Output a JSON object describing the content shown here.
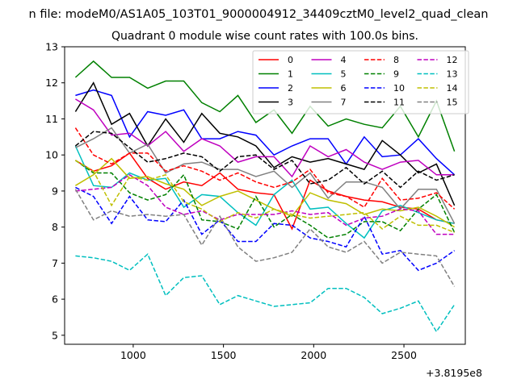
{
  "chart_data": {
    "type": "line",
    "suptitle": "n file: modeM0/AS1A05_103T01_9000004912_34409cztM0_level2_quad_clean",
    "title": "Quadrant 0 module wise count rates with 100.0s bins.",
    "xlabel": "",
    "ylabel": "",
    "x_offset_label": "+3.8195e8",
    "xlim": [
      620,
      2840
    ],
    "ylim": [
      4.75,
      13.0
    ],
    "xticks": [
      1000,
      1500,
      2000,
      2500
    ],
    "yticks": [
      5,
      6,
      7,
      8,
      9,
      10,
      11,
      12,
      13
    ],
    "legend_position": "upper-right",
    "legend_columns": 4,
    "grid": false,
    "x": [
      680,
      780,
      880,
      980,
      1080,
      1180,
      1280,
      1380,
      1480,
      1580,
      1680,
      1780,
      1880,
      1980,
      2080,
      2180,
      2280,
      2380,
      2480,
      2580,
      2680,
      2780
    ],
    "series": [
      {
        "name": "0",
        "color": "#ff0000",
        "dash": "solid",
        "values": [
          9.85,
          9.55,
          9.7,
          10.05,
          9.35,
          9.05,
          9.25,
          9.15,
          9.5,
          9.05,
          8.95,
          8.9,
          7.95,
          9.3,
          9.0,
          8.85,
          8.75,
          8.7,
          8.55,
          8.5,
          8.2,
          8.1
        ]
      },
      {
        "name": "1",
        "color": "#008000",
        "dash": "solid",
        "values": [
          12.15,
          12.6,
          12.15,
          12.15,
          11.85,
          12.05,
          12.05,
          11.45,
          11.2,
          11.65,
          10.9,
          11.25,
          10.6,
          11.35,
          10.8,
          11.0,
          10.85,
          10.75,
          11.35,
          10.5,
          11.5,
          10.1
        ]
      },
      {
        "name": "2",
        "color": "#0000ff",
        "dash": "solid",
        "values": [
          11.65,
          11.8,
          11.65,
          10.5,
          11.2,
          11.1,
          11.25,
          10.45,
          10.45,
          10.65,
          10.55,
          10.0,
          10.25,
          10.45,
          10.45,
          9.75,
          10.5,
          9.95,
          10.0,
          10.45,
          9.9,
          9.45
        ]
      },
      {
        "name": "3",
        "color": "#000000",
        "dash": "solid",
        "values": [
          11.2,
          12.0,
          10.85,
          11.15,
          10.25,
          11.0,
          10.35,
          11.15,
          10.6,
          10.5,
          10.25,
          9.65,
          9.95,
          9.8,
          9.9,
          9.75,
          9.6,
          10.4,
          10.0,
          9.5,
          9.75,
          8.6
        ]
      },
      {
        "name": "4",
        "color": "#bf00bf",
        "dash": "solid",
        "values": [
          11.55,
          11.25,
          10.55,
          10.6,
          10.25,
          10.65,
          10.1,
          10.45,
          10.25,
          9.8,
          9.95,
          9.95,
          9.4,
          10.25,
          9.95,
          10.15,
          9.8,
          9.6,
          9.8,
          9.85,
          9.45,
          9.45
        ]
      },
      {
        "name": "5",
        "color": "#00bfbf",
        "dash": "solid",
        "values": [
          10.25,
          9.15,
          9.1,
          9.5,
          9.3,
          9.35,
          8.55,
          8.9,
          8.85,
          8.4,
          8.05,
          8.9,
          9.3,
          8.5,
          8.55,
          8.1,
          7.7,
          8.45,
          8.6,
          8.4,
          8.2,
          8.1
        ]
      },
      {
        "name": "6",
        "color": "#bfbf00",
        "dash": "solid",
        "values": [
          9.15,
          9.45,
          9.9,
          9.35,
          9.4,
          9.2,
          9.05,
          8.6,
          8.85,
          9.0,
          8.75,
          8.5,
          8.3,
          8.95,
          8.75,
          8.65,
          8.35,
          8.5,
          8.45,
          8.55,
          8.3,
          8.0
        ]
      },
      {
        "name": "7",
        "color": "#808080",
        "dash": "solid",
        "values": [
          10.2,
          10.45,
          10.75,
          10.05,
          10.3,
          9.5,
          9.75,
          9.8,
          9.6,
          9.6,
          9.4,
          9.55,
          9.1,
          9.5,
          8.8,
          9.25,
          9.25,
          9.1,
          8.5,
          9.05,
          9.05,
          8.1
        ]
      },
      {
        "name": "8",
        "color": "#ff0000",
        "dash": "dashed",
        "values": [
          10.75,
          10.0,
          9.75,
          10.05,
          10.05,
          9.55,
          9.7,
          9.55,
          9.3,
          9.5,
          9.25,
          9.1,
          9.25,
          9.6,
          8.95,
          8.85,
          8.55,
          9.35,
          8.75,
          8.8,
          8.95,
          8.5
        ]
      },
      {
        "name": "9",
        "color": "#008000",
        "dash": "dashed",
        "values": [
          9.85,
          9.5,
          9.5,
          8.95,
          8.75,
          8.9,
          9.45,
          8.2,
          8.15,
          7.95,
          8.85,
          8.0,
          8.35,
          8.05,
          7.7,
          7.8,
          8.15,
          8.15,
          7.9,
          8.5,
          8.9,
          7.85
        ]
      },
      {
        "name": "10",
        "color": "#0000ff",
        "dash": "dashed",
        "values": [
          9.1,
          8.85,
          8.1,
          8.85,
          8.2,
          8.15,
          8.75,
          7.8,
          8.2,
          7.6,
          7.6,
          8.1,
          8.05,
          7.7,
          7.6,
          7.45,
          8.3,
          7.25,
          7.35,
          6.8,
          7.0,
          7.35
        ]
      },
      {
        "name": "11",
        "color": "#000000",
        "dash": "dashed",
        "values": [
          10.25,
          10.65,
          10.6,
          10.2,
          9.8,
          9.9,
          10.05,
          9.95,
          9.55,
          9.95,
          10.0,
          9.6,
          9.85,
          9.2,
          9.3,
          9.65,
          9.2,
          9.55,
          9.1,
          9.55,
          9.3,
          9.45
        ]
      },
      {
        "name": "12",
        "color": "#bf00bf",
        "dash": "dashed",
        "values": [
          9.0,
          9.05,
          9.1,
          9.45,
          9.15,
          8.55,
          8.35,
          8.45,
          8.2,
          8.35,
          8.35,
          8.35,
          8.45,
          8.35,
          8.4,
          8.05,
          8.25,
          8.3,
          8.5,
          8.45,
          7.8,
          7.8
        ]
      },
      {
        "name": "13",
        "color": "#00bfbf",
        "dash": "dashed",
        "values": [
          7.2,
          7.15,
          7.05,
          6.8,
          7.25,
          6.1,
          6.6,
          6.65,
          5.85,
          6.1,
          5.95,
          5.8,
          5.85,
          5.9,
          6.3,
          6.3,
          6.05,
          5.6,
          5.75,
          5.95,
          5.1,
          5.85
        ]
      },
      {
        "name": "14",
        "color": "#bfbf00",
        "dash": "dashed",
        "values": [
          9.85,
          9.55,
          8.6,
          9.4,
          9.3,
          9.45,
          8.7,
          8.5,
          8.15,
          8.4,
          8.25,
          8.5,
          8.35,
          8.25,
          8.3,
          8.35,
          8.4,
          7.95,
          8.3,
          8.05,
          8.05,
          7.85
        ]
      },
      {
        "name": "15",
        "color": "#808080",
        "dash": "dashed",
        "values": [
          9.05,
          8.2,
          8.45,
          8.3,
          8.35,
          8.3,
          8.35,
          7.5,
          8.3,
          7.45,
          7.05,
          7.15,
          7.3,
          7.95,
          7.45,
          7.3,
          7.6,
          7.0,
          7.3,
          7.25,
          7.2,
          6.35
        ]
      }
    ]
  }
}
